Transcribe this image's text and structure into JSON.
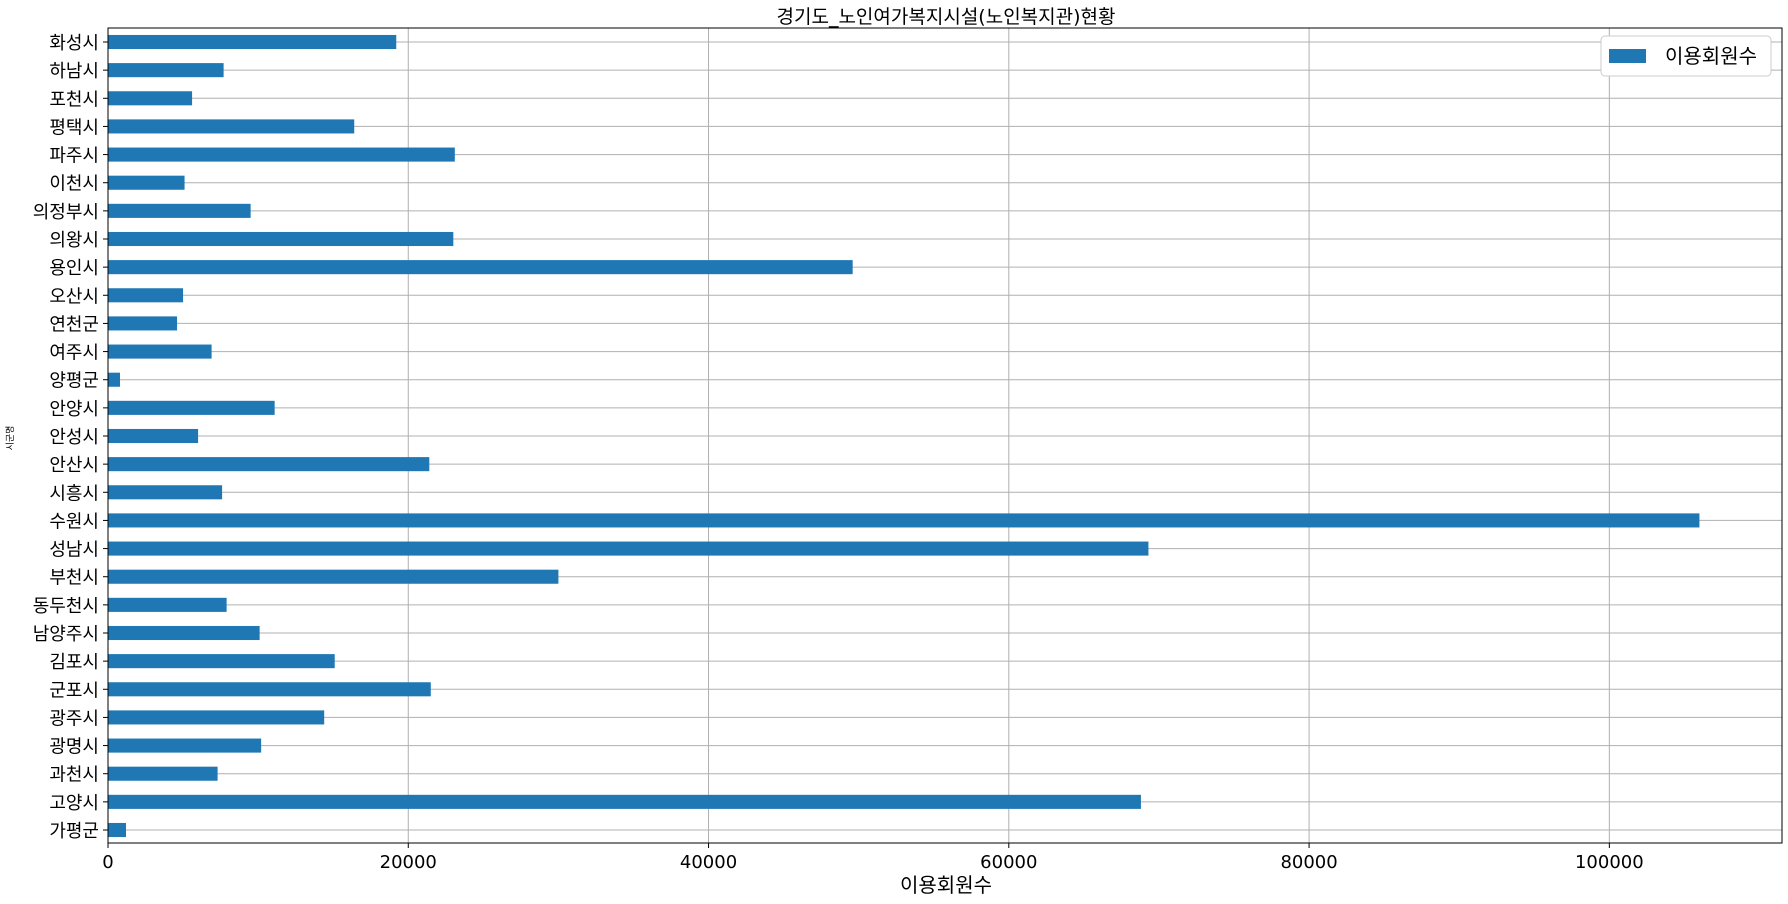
{
  "chart_data": {
    "type": "bar",
    "orientation": "horizontal",
    "title": "경기도_노인여가복지시설(노인복지관)현황",
    "xlabel": "이용회원수",
    "ylabel": "시군명",
    "xlim": [
      0,
      111500
    ],
    "xticks": [
      0,
      20000,
      40000,
      60000,
      80000,
      100000
    ],
    "grid": true,
    "legend_position": "top-right",
    "bar_color": "#1f77b4",
    "categories": [
      "가평군",
      "고양시",
      "과천시",
      "광명시",
      "광주시",
      "군포시",
      "김포시",
      "남양주시",
      "동두천시",
      "부천시",
      "성남시",
      "수원시",
      "시흥시",
      "안산시",
      "안성시",
      "안양시",
      "양평군",
      "여주시",
      "연천군",
      "오산시",
      "용인시",
      "의왕시",
      "의정부시",
      "이천시",
      "파주시",
      "평택시",
      "포천시",
      "하남시",
      "화성시"
    ],
    "series": [
      {
        "name": "이용회원수",
        "values": [
          1200,
          68800,
          7300,
          10200,
          14400,
          21500,
          15100,
          10100,
          7900,
          30000,
          69300,
          106000,
          7600,
          21400,
          6000,
          11100,
          800,
          6900,
          4600,
          5000,
          49600,
          23000,
          9500,
          5100,
          23100,
          16400,
          5600,
          7700,
          19200
        ]
      }
    ]
  }
}
